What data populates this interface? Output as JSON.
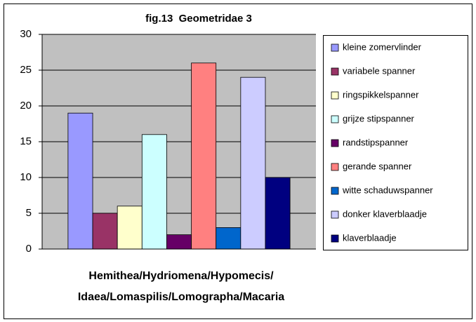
{
  "chart_data": {
    "type": "bar",
    "title": "fig.13  Geometridae 3",
    "xlabel": [
      "Hemithea/Hydriomena/Hypomecis/",
      "Idaea/Lomaspilis/Lomographa/Macaria"
    ],
    "ylim": [
      0,
      30
    ],
    "yticks": [
      0,
      5,
      10,
      15,
      20,
      25,
      30
    ],
    "grid": true,
    "legend": "right",
    "series": [
      {
        "name": "kleine zomervlinder",
        "color": "#9999ff",
        "values": [
          19
        ]
      },
      {
        "name": "variabele spanner",
        "color": "#993366",
        "values": [
          5
        ]
      },
      {
        "name": "ringspikkelspanner",
        "color": "#ffffcc",
        "values": [
          6
        ]
      },
      {
        "name": "grijze stipspanner",
        "color": "#ccffff",
        "values": [
          16
        ]
      },
      {
        "name": "randstipspanner",
        "color": "#660066",
        "values": [
          2
        ]
      },
      {
        "name": "gerande spanner",
        "color": "#ff8080",
        "values": [
          26
        ]
      },
      {
        "name": "witte schaduwspanner",
        "color": "#0066cc",
        "values": [
          3
        ]
      },
      {
        "name": "donker klaverblaadje",
        "color": "#ccccff",
        "values": [
          24
        ]
      },
      {
        "name": "klaverblaadje",
        "color": "#000080",
        "values": [
          10
        ]
      }
    ]
  }
}
